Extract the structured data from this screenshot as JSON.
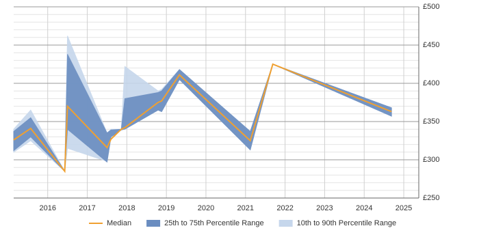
{
  "chart_data": {
    "type": "line",
    "x": [
      2015.14,
      2015.57,
      2016.43,
      2016.5,
      2017.5,
      2017.6,
      2017.86,
      2017.95,
      2018.79,
      2018.88,
      2019.33,
      2021.12,
      2021.69,
      2024.69
    ],
    "series": [
      {
        "name": "10th to 90th Percentile Range",
        "kind": "band",
        "color": "#c6d7ec",
        "high": [
          340,
          365,
          285,
          462,
          335,
          340,
          340,
          422,
          390,
          392,
          418,
          337,
          425,
          368
        ],
        "low": [
          310,
          325,
          285,
          315,
          298,
          330,
          339,
          340,
          365,
          363,
          405,
          313,
          425,
          357
        ]
      },
      {
        "name": "25th to 75th Percentile Range",
        "kind": "band",
        "color": "#6a8dc0",
        "high": [
          337,
          355,
          285,
          438,
          335,
          339,
          340,
          380,
          388,
          390,
          418,
          337,
          425,
          368
        ],
        "low": [
          312,
          330,
          285,
          340,
          297,
          330,
          339,
          340,
          365,
          363,
          405,
          313,
          425,
          357
        ]
      },
      {
        "name": "Median",
        "kind": "line",
        "color": "#f0a030",
        "values": [
          326,
          341,
          285,
          370,
          316,
          327,
          340,
          342,
          375,
          377,
          411,
          325,
          425,
          363
        ]
      }
    ],
    "xlim": [
      2015.14,
      2025.38
    ],
    "xticks": [
      2016,
      2017,
      2018,
      2019,
      2020,
      2021,
      2022,
      2023,
      2024,
      2025
    ],
    "ylim": [
      250,
      500
    ],
    "yticks": [
      {
        "value": 250,
        "label": "£250"
      },
      {
        "value": 300,
        "label": "£300"
      },
      {
        "value": 350,
        "label": "£350"
      },
      {
        "value": 400,
        "label": "£400"
      },
      {
        "value": 450,
        "label": "£450"
      },
      {
        "value": 500,
        "label": "£500"
      }
    ],
    "grid": true,
    "minor_grid": true,
    "legend": "bottom"
  }
}
